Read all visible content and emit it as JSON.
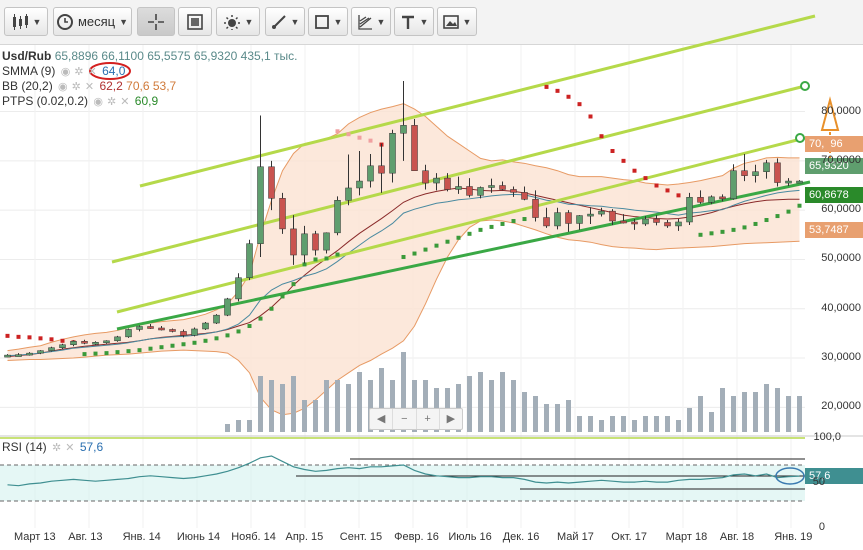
{
  "toolbar": {
    "period_label": "месяц",
    "items": [
      {
        "name": "candles-icon"
      },
      {
        "name": "period-select"
      },
      {
        "name": "crosshair-icon"
      },
      {
        "name": "fullscreen-icon"
      },
      {
        "name": "indicators-icon"
      },
      {
        "name": "draw-line-icon"
      },
      {
        "name": "shapes-icon"
      },
      {
        "name": "fib-icon"
      },
      {
        "name": "text-icon"
      },
      {
        "name": "image-icon"
      }
    ]
  },
  "legend": {
    "symbol": "Usd/Rub",
    "ohlc": "65,8896  66,1100  65,5575  65,9320",
    "volume": "435,1 тыс.",
    "smma_name": "SMMA (9)",
    "smma_val": "64,0",
    "bb_name": "BB (20,2)",
    "bb_v1": "62,2",
    "bb_v2": "70,6",
    "bb_v3": "53,7",
    "ptps_name": "PTPS (0.02,0.2)",
    "ptps_val": "60,9",
    "rsi_name": "RSI (14)",
    "rsi_val": "57,6"
  },
  "price_tags": {
    "upper": "70,  96",
    "close": "65,9320",
    "ptps": "60,8678",
    "lower": "53,7487",
    "rsi": "57,6"
  },
  "colors": {
    "up": "#5f9e6e",
    "down": "#c9534f",
    "ptps": "#cc2222",
    "ptps_green": "#3a9a3a",
    "trend": "#b5d94a",
    "trend_dark": "#3aa845",
    "band_fill": "#fbe2d2",
    "band_line": "#e79a64",
    "volume": "#a3aeb8",
    "rsi_line": "#3f8f91",
    "rsi_fill": "#d4f1ee"
  },
  "chart_data": {
    "type": "candlestick",
    "yticks": [
      "80,0000",
      "70,0000",
      "60,0000",
      "50,0000",
      "40,0000",
      "30,0000",
      "20,0000"
    ],
    "rsi_ticks": [
      "100,0",
      "50",
      "0"
    ],
    "xlabels": [
      "Март 13",
      "Авг. 13",
      "Янв. 14",
      "Июнь 14",
      "Нояб. 14",
      "Апр. 15",
      "Сент. 15",
      "Февр. 16",
      "Июль 16",
      "Дек. 16",
      "Май 17",
      "Окт. 17",
      "Март 18",
      "Авг. 18",
      "Янв. 19"
    ],
    "candles": [
      [
        30.5,
        30.8,
        30.2,
        30.6
      ],
      [
        30.6,
        31.0,
        30.4,
        30.7
      ],
      [
        30.7,
        31.2,
        30.5,
        31.0
      ],
      [
        31.0,
        31.6,
        30.8,
        31.5
      ],
      [
        31.5,
        32.3,
        31.3,
        32.1
      ],
      [
        32.1,
        32.9,
        31.8,
        32.7
      ],
      [
        32.7,
        33.6,
        32.4,
        33.4
      ],
      [
        33.4,
        33.7,
        32.8,
        33.0
      ],
      [
        33.0,
        33.4,
        32.6,
        33.2
      ],
      [
        33.2,
        33.6,
        32.9,
        33.5
      ],
      [
        33.5,
        34.5,
        33.3,
        34.3
      ],
      [
        34.3,
        36.0,
        34.1,
        35.8
      ],
      [
        35.8,
        36.6,
        35.4,
        36.4
      ],
      [
        36.4,
        36.9,
        35.9,
        36.1
      ],
      [
        36.1,
        36.5,
        35.6,
        35.8
      ],
      [
        35.8,
        36.0,
        35.2,
        35.4
      ],
      [
        35.4,
        35.8,
        34.2,
        34.6
      ],
      [
        34.6,
        36.2,
        34.4,
        35.9
      ],
      [
        35.9,
        37.3,
        35.7,
        37.1
      ],
      [
        37.1,
        38.9,
        36.9,
        38.7
      ],
      [
        38.7,
        42.2,
        38.5,
        42.0
      ],
      [
        42.0,
        47.2,
        41.5,
        46.3
      ],
      [
        46.3,
        54.0,
        45.8,
        53.2
      ],
      [
        53.2,
        79.2,
        50.5,
        68.8
      ],
      [
        68.8,
        70.0,
        60.0,
        62.4
      ],
      [
        62.4,
        63.5,
        55.2,
        56.2
      ],
      [
        56.2,
        59.0,
        48.9,
        50.9
      ],
      [
        50.9,
        56.8,
        49.2,
        55.2
      ],
      [
        55.2,
        55.8,
        50.8,
        51.9
      ],
      [
        51.9,
        55.5,
        51.2,
        55.4
      ],
      [
        55.4,
        62.8,
        54.9,
        62.0
      ],
      [
        62.0,
        71.3,
        61.0,
        64.5
      ],
      [
        64.5,
        72.0,
        63.0,
        65.9
      ],
      [
        65.9,
        71.4,
        64.6,
        69.0
      ],
      [
        69.0,
        73.5,
        63.5,
        67.5
      ],
      [
        67.5,
        76.3,
        65.6,
        75.6
      ],
      [
        75.6,
        86.2,
        70.0,
        77.2
      ],
      [
        77.2,
        78.5,
        68.2,
        68.0
      ],
      [
        68.0,
        69.2,
        64.2,
        65.5
      ],
      [
        65.5,
        67.5,
        64.0,
        66.5
      ],
      [
        66.5,
        67.5,
        63.8,
        64.2
      ],
      [
        64.2,
        66.8,
        63.3,
        64.8
      ],
      [
        64.8,
        66.5,
        62.6,
        63.0
      ],
      [
        63.0,
        64.8,
        62.4,
        64.6
      ],
      [
        64.6,
        66.4,
        63.5,
        65.0
      ],
      [
        65.0,
        65.8,
        64.0,
        64.2
      ],
      [
        64.2,
        64.8,
        62.7,
        63.6
      ],
      [
        63.6,
        64.8,
        62.0,
        62.2
      ],
      [
        62.2,
        64.0,
        57.7,
        58.5
      ],
      [
        58.5,
        60.5,
        56.4,
        56.8
      ],
      [
        56.8,
        60.5,
        56.1,
        59.5
      ],
      [
        59.5,
        60.0,
        55.6,
        57.3
      ],
      [
        57.3,
        59.0,
        56.0,
        58.9
      ],
      [
        58.9,
        60.6,
        57.2,
        59.2
      ],
      [
        59.2,
        60.5,
        58.7,
        59.8
      ],
      [
        59.8,
        60.2,
        57.0,
        57.8
      ],
      [
        57.8,
        59.2,
        57.3,
        57.6
      ],
      [
        57.6,
        58.2,
        56.0,
        57.2
      ],
      [
        57.2,
        58.8,
        56.8,
        58.2
      ],
      [
        58.2,
        59.0,
        56.9,
        57.5
      ],
      [
        57.5,
        58.0,
        56.4,
        56.8
      ],
      [
        56.8,
        58.2,
        55.8,
        57.6
      ],
      [
        57.6,
        63.5,
        57.0,
        62.6
      ],
      [
        62.6,
        64.0,
        61.3,
        61.6
      ],
      [
        61.6,
        63.0,
        61.2,
        62.7
      ],
      [
        62.7,
        63.2,
        61.8,
        62.3
      ],
      [
        62.3,
        69.3,
        62.1,
        68.0
      ],
      [
        68.0,
        71.4,
        65.9,
        67.0
      ],
      [
        67.0,
        69.2,
        65.6,
        67.8
      ],
      [
        67.8,
        70.2,
        66.4,
        69.6
      ],
      [
        69.6,
        70.5,
        64.8,
        65.6
      ],
      [
        65.6,
        66.5,
        64.9,
        65.9
      ],
      [
        65.9,
        66.1,
        65.6,
        65.9
      ]
    ],
    "volume": [
      0,
      0,
      0,
      0,
      0,
      0,
      0,
      0,
      0,
      0,
      0,
      0,
      0,
      0,
      0,
      0,
      0,
      0,
      0,
      0,
      2,
      3,
      3,
      14,
      13,
      12,
      14,
      8,
      8,
      13,
      13,
      12,
      15,
      13,
      16,
      13,
      20,
      13,
      13,
      11,
      11,
      12,
      14,
      15,
      13,
      15,
      13,
      10,
      9,
      7,
      7,
      8,
      4,
      4,
      3,
      4,
      4,
      3,
      4,
      4,
      4,
      3,
      6,
      9,
      5,
      11,
      9,
      10,
      10,
      12,
      11,
      9,
      9
    ],
    "ptps": [
      [
        0,
        34.5,
        "r"
      ],
      [
        1,
        34.3,
        "r"
      ],
      [
        2,
        34.2,
        "r"
      ],
      [
        3,
        34.0,
        "r"
      ],
      [
        4,
        33.8,
        "r"
      ],
      [
        5,
        33.5,
        "r"
      ],
      [
        6,
        33.2,
        "r"
      ],
      [
        7,
        30.8,
        "g"
      ],
      [
        8,
        30.9,
        "g"
      ],
      [
        9,
        31.0,
        "g"
      ],
      [
        10,
        31.2,
        "g"
      ],
      [
        11,
        31.4,
        "g"
      ],
      [
        12,
        31.6,
        "g"
      ],
      [
        13,
        31.9,
        "g"
      ],
      [
        14,
        32.2,
        "g"
      ],
      [
        15,
        32.5,
        "g"
      ],
      [
        16,
        32.8,
        "g"
      ],
      [
        17,
        33.1,
        "g"
      ],
      [
        18,
        33.5,
        "g"
      ],
      [
        19,
        34.0,
        "g"
      ],
      [
        20,
        34.6,
        "g"
      ],
      [
        21,
        35.4,
        "g"
      ],
      [
        22,
        36.5,
        "g"
      ],
      [
        23,
        38.0,
        "g"
      ],
      [
        24,
        40.0,
        "g"
      ],
      [
        25,
        42.5,
        "g"
      ],
      [
        26,
        45.0,
        "g"
      ],
      [
        27,
        49.0,
        "g"
      ],
      [
        28,
        50.0,
        "g"
      ],
      [
        29,
        50.2,
        "g"
      ],
      [
        30,
        51.0,
        "g"
      ],
      [
        30,
        76.0,
        "rl"
      ],
      [
        31,
        75.4,
        "rl"
      ],
      [
        32,
        74.7,
        "rl"
      ],
      [
        33,
        74.1,
        "rl"
      ],
      [
        34,
        73.3,
        "r"
      ],
      [
        35,
        72.5,
        "r"
      ],
      [
        36,
        50.5,
        "g"
      ],
      [
        37,
        51.2,
        "g"
      ],
      [
        38,
        52.0,
        "g"
      ],
      [
        39,
        52.8,
        "g"
      ],
      [
        40,
        53.6,
        "g"
      ],
      [
        41,
        54.4,
        "g"
      ],
      [
        42,
        55.2,
        "g"
      ],
      [
        43,
        56.0,
        "g"
      ],
      [
        44,
        56.6,
        "g"
      ],
      [
        45,
        57.2,
        "g"
      ],
      [
        46,
        57.8,
        "g"
      ],
      [
        47,
        58.2,
        "g"
      ],
      [
        49,
        85.0,
        "r"
      ],
      [
        50,
        84.2,
        "r"
      ],
      [
        51,
        83.0,
        "r"
      ],
      [
        52,
        81.5,
        "r"
      ],
      [
        53,
        79.0,
        "r"
      ],
      [
        54,
        75.0,
        "r"
      ],
      [
        55,
        72.0,
        "r"
      ],
      [
        56,
        70.0,
        "r"
      ],
      [
        57,
        68.0,
        "r"
      ],
      [
        58,
        66.5,
        "r"
      ],
      [
        59,
        65.0,
        "r"
      ],
      [
        60,
        64.0,
        "r"
      ],
      [
        61,
        63.0,
        "r"
      ],
      [
        62,
        62.0,
        "r"
      ],
      [
        63,
        55.0,
        "g"
      ],
      [
        64,
        55.3,
        "g"
      ],
      [
        65,
        55.6,
        "g"
      ],
      [
        66,
        56.0,
        "g"
      ],
      [
        67,
        56.5,
        "g"
      ],
      [
        68,
        57.2,
        "g"
      ],
      [
        69,
        58.0,
        "g"
      ],
      [
        70,
        58.8,
        "g"
      ],
      [
        71,
        59.7,
        "g"
      ],
      [
        72,
        60.9,
        "g"
      ]
    ],
    "bb_upper": [
      31.5,
      31.8,
      32.2,
      32.5,
      33.2,
      33.8,
      34.3,
      34.7,
      35.0,
      35.2,
      35.6,
      36.2,
      36.8,
      37.1,
      37.4,
      37.6,
      37.8,
      38.3,
      38.9,
      39.8,
      41.0,
      43.5,
      47.0,
      55.0,
      62.0,
      68.0,
      71.5,
      73.5,
      74.0,
      74.5,
      75.5,
      77.5,
      78.8,
      79.8,
      80.5,
      81.0,
      81.6,
      80.5,
      79.0,
      77.0,
      75.0,
      73.5,
      72.0,
      70.5,
      70.0,
      70.2,
      69.8,
      69.5,
      69.0,
      68.6,
      68.0,
      67.2,
      66.8,
      66.8,
      66.8,
      66.5,
      66.2,
      66.0,
      65.5,
      65.3,
      65.1,
      65.3,
      65.6,
      66.0,
      66.5,
      67.0,
      68.5,
      69.5,
      70.0,
      70.6,
      70.7,
      70.6,
      70.6
    ],
    "bb_lower": [
      29.5,
      29.6,
      29.7,
      29.7,
      29.8,
      29.9,
      30.0,
      30.2,
      30.4,
      30.6,
      30.7,
      30.8,
      31.0,
      31.2,
      31.4,
      31.5,
      31.6,
      31.5,
      31.4,
      31.3,
      31.0,
      29.5,
      27.0,
      22.0,
      19.5,
      18.5,
      18.8,
      19.8,
      21.5,
      23.5,
      25.5,
      27.0,
      28.5,
      29.5,
      30.8,
      32.0,
      33.5,
      36.5,
      41.0,
      46.0,
      50.5,
      54.0,
      56.5,
      57.8,
      58.0,
      57.8,
      57.4,
      56.7,
      56.0,
      55.2,
      54.5,
      54.0,
      53.8,
      53.5,
      53.0,
      52.6,
      52.4,
      52.3,
      52.1,
      52.0,
      52.2,
      52.3,
      52.4,
      52.5,
      52.6,
      52.8,
      53.0,
      53.2,
      53.3,
      53.4,
      53.5,
      53.6,
      53.7
    ],
    "bb_mid": [
      30.3,
      30.5,
      30.7,
      31.0,
      31.4,
      31.8,
      32.1,
      32.4,
      32.6,
      32.8,
      33.0,
      33.2,
      33.5,
      33.9,
      34.2,
      34.4,
      34.6,
      34.8,
      35.0,
      35.3,
      35.8,
      36.5,
      37.2,
      38.6,
      40.3,
      42.4,
      44.8,
      46.8,
      48.6,
      50.2,
      51.8,
      53.6,
      55.3,
      56.8,
      58.3,
      59.9,
      61.6,
      62.6,
      63.3,
      63.8,
      64.2,
      64.5,
      64.3,
      64.0,
      63.9,
      64.0,
      63.8,
      63.5,
      63.0,
      62.5,
      62.0,
      61.5,
      61.0,
      60.5,
      60.0,
      59.5,
      59.0,
      58.7,
      58.5,
      58.3,
      58.2,
      58.3,
      58.6,
      59.0,
      59.5,
      60.2,
      60.8,
      61.3,
      61.7,
      62.0,
      62.1,
      62.2,
      62.2
    ],
    "smma": [
      30.5,
      30.6,
      30.8,
      31.0,
      31.3,
      31.6,
      32.0,
      32.2,
      32.4,
      32.6,
      32.8,
      33.1,
      33.5,
      33.9,
      34.1,
      34.3,
      34.4,
      34.6,
      34.9,
      35.3,
      35.9,
      36.9,
      38.7,
      41.8,
      43.8,
      45.0,
      45.7,
      46.6,
      47.2,
      48.1,
      49.6,
      51.3,
      52.9,
      54.5,
      55.8,
      57.3,
      59.4,
      60.2,
      60.8,
      61.4,
      61.7,
      62.1,
      62.3,
      62.6,
      62.9,
      63.1,
      63.2,
      63.1,
      62.6,
      62.0,
      61.7,
      61.2,
      61.1,
      60.9,
      60.8,
      60.5,
      60.3,
      60.0,
      59.8,
      59.6,
      59.3,
      59.0,
      59.4,
      59.6,
      59.9,
      60.1,
      61.0,
      61.8,
      62.4,
      63.0,
      63.5,
      63.8,
      64.0
    ],
    "rsi": [
      48,
      47,
      49,
      50,
      52,
      53,
      54,
      53,
      52,
      53,
      54,
      55,
      57,
      58,
      57,
      56,
      55,
      56,
      58,
      60,
      63,
      67,
      72,
      78,
      80,
      74,
      68,
      65,
      63,
      64,
      66,
      67,
      66,
      68,
      68,
      69,
      70,
      64,
      60,
      58,
      57,
      56,
      56,
      57,
      57,
      56,
      56,
      54,
      51,
      50,
      51,
      50,
      51,
      52,
      53,
      52,
      51,
      51,
      52,
      51,
      51,
      53,
      54,
      54,
      55,
      56,
      59,
      60,
      58,
      60,
      56,
      57,
      57.6
    ]
  }
}
